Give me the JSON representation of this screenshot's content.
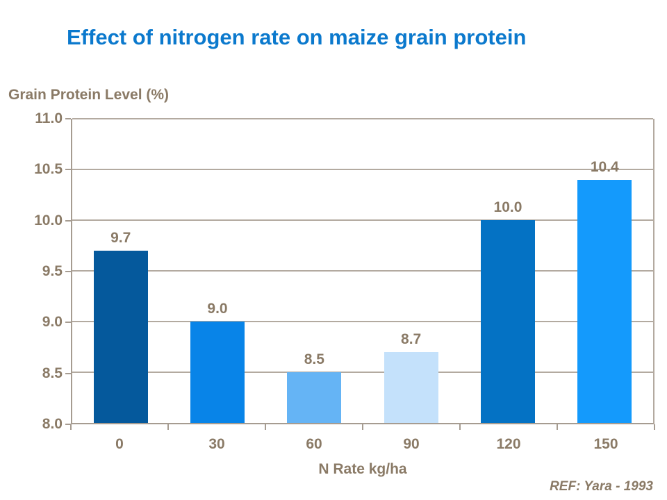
{
  "page": {
    "background": "#ffffff"
  },
  "colors": {
    "title": "#0B79CD",
    "text": "#8A7A66",
    "grid": "#B3AAA0",
    "axis": "#A69C91"
  },
  "chart_data": {
    "type": "bar",
    "title": "Effect of nitrogen rate on maize grain protein",
    "xlabel": "N Rate kg/ha",
    "ylabel": "Grain Protein Level (%)",
    "categories": [
      "0",
      "30",
      "60",
      "90",
      "120",
      "150"
    ],
    "values": [
      9.7,
      9.0,
      8.5,
      8.7,
      10.0,
      10.4
    ],
    "value_labels": [
      "9.7",
      "9.0",
      "8.5",
      "8.7",
      "10.0",
      "10.4"
    ],
    "bar_colors": [
      "#05599C",
      "#0884E8",
      "#65B4F5",
      "#C4E1FB",
      "#0472C4",
      "#149AFC"
    ],
    "ylim": [
      8.0,
      11.0
    ],
    "ytick_step": 0.5,
    "yticks": [
      "11.0",
      "10.5",
      "10.0",
      "9.5",
      "9.0",
      "8.5",
      "8.0"
    ],
    "grid": true,
    "legend": false,
    "annotation": "REF: Yara - 1993"
  }
}
